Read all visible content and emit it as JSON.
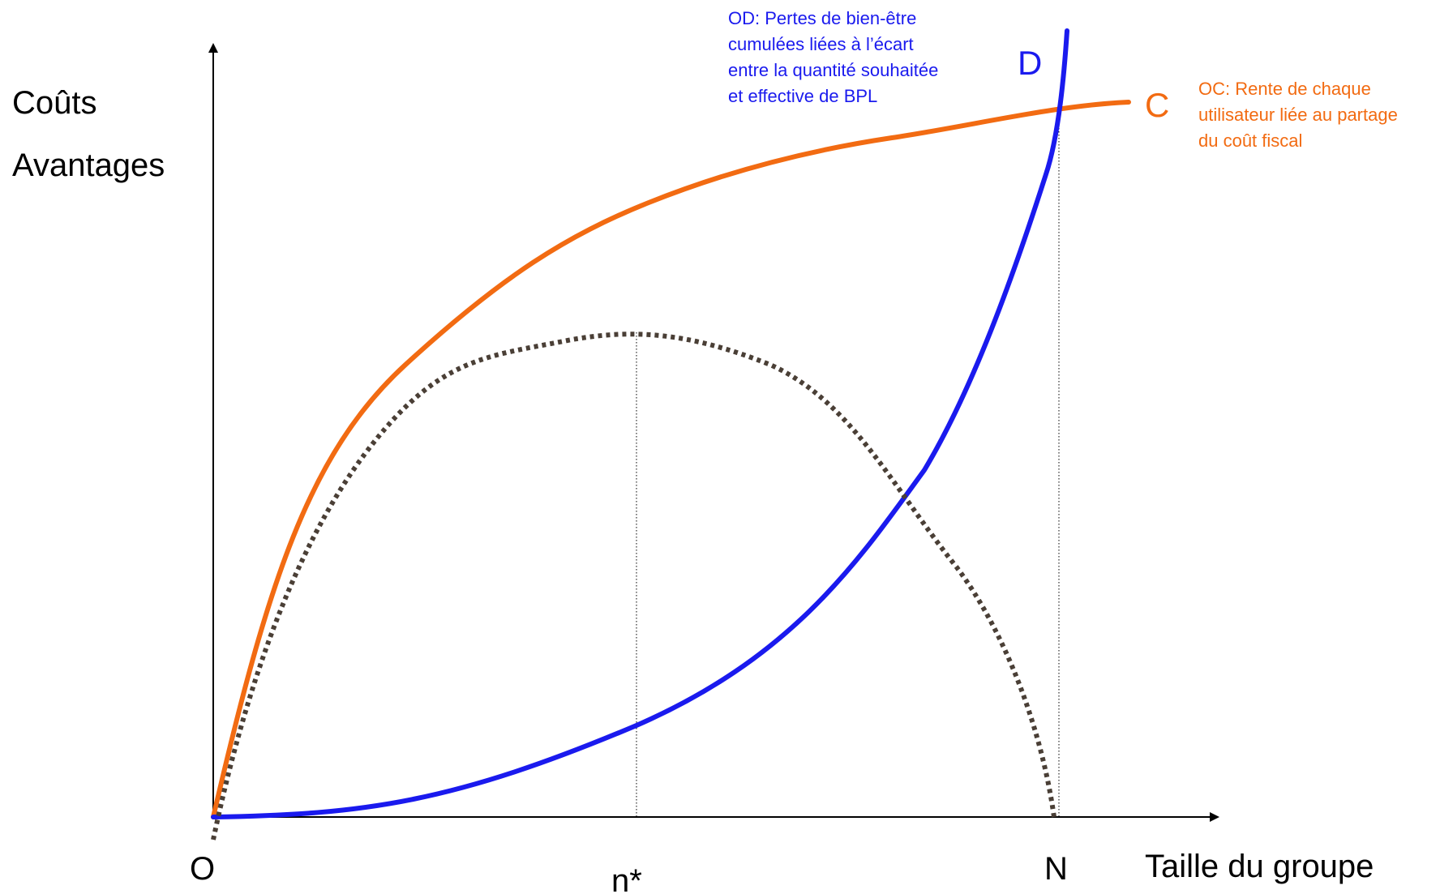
{
  "axes": {
    "y_label_line1": "Coûts",
    "y_label_line2": "Avantages",
    "x_label": "Taille du groupe",
    "origin_label": "O",
    "optimum_label": "n*",
    "max_label": "N"
  },
  "curves": {
    "C": {
      "label": "C",
      "color": "#f26b12",
      "note_lines": [
        "OC: Rente de chaque",
        "utilisateur liée au partage",
        "du coût fiscal"
      ]
    },
    "D": {
      "label": "D",
      "color": "#1a1aee",
      "note_lines": [
        "OD: Pertes de bien-être",
        "cumulées liées à l’écart",
        "entre la quantité souhaitée",
        "et effective de BPL"
      ]
    },
    "net": {
      "color": "#4a3f36",
      "style": "dotted"
    }
  }
}
